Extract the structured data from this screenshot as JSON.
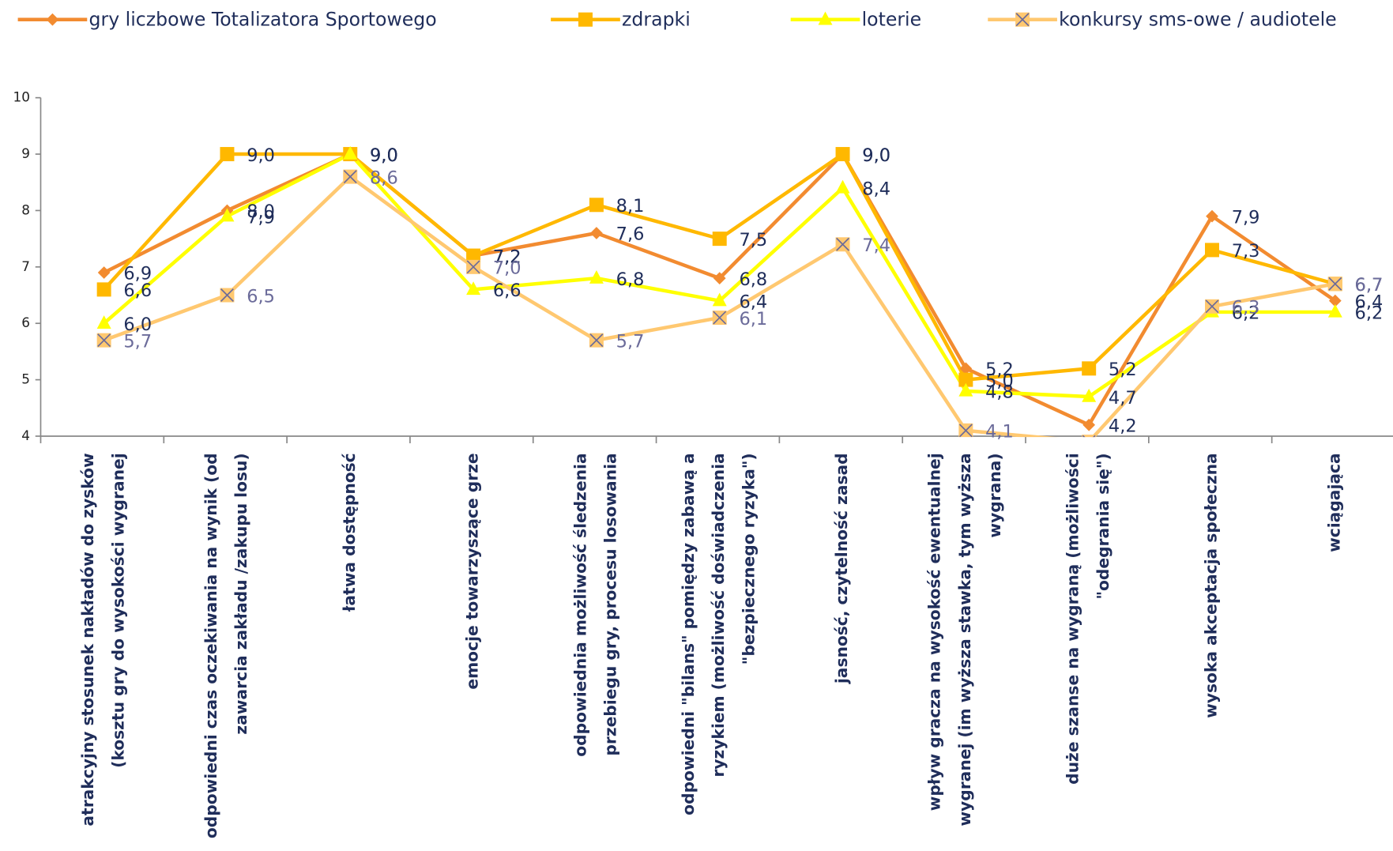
{
  "chart_data": {
    "type": "line",
    "categories": [
      "atrakcyjny stosunek nakładów do zysków (kosztu gry do wysokości wygranej",
      "odpowiedni czas oczekiwania na wynik (od zawarcia zakładu /zakupu losu)",
      "łatwa dostępność",
      "emocje towarzyszące grze",
      "odpowiednia możliwość śledzenia przebiegu gry, procesu losowania",
      "odpowiedni \"bilans\" pomiędzy zabawą a ryzykiem (możliwość doświadczenia \"bezpiecznego ryzyka\")",
      "jasność, czytelność zasad",
      "wpływ gracza na wysokość ewentualnej wygranej (im wyższa stawka, tym wyższa wygrana)",
      "duże szanse na wygraną (możliwości \"odegrania się\")",
      "wysoka akceptacja społeczna",
      "wciągająca"
    ],
    "series": [
      {
        "name": "gry liczbowe Totalizatora Sportowego",
        "color": "#f28b30",
        "marker": "diamond",
        "label_color": "#1f2d5a",
        "values": [
          6.9,
          8.0,
          9.0,
          7.2,
          7.6,
          6.8,
          9.0,
          5.2,
          4.2,
          7.9,
          6.4
        ],
        "value_labels": [
          "6,9",
          "8,0",
          "9,0",
          "7,2",
          "7,6",
          "6,8",
          "9,0",
          "5,2",
          "4,2",
          "7,9",
          "6,4"
        ]
      },
      {
        "name": "zdrapki",
        "color": "#ffb800",
        "marker": "square",
        "label_color": "#1f2d5a",
        "values": [
          6.6,
          9.0,
          9.0,
          7.2,
          8.1,
          7.5,
          9.0,
          5.0,
          5.2,
          7.3,
          6.7
        ],
        "value_labels": [
          "6,6",
          "9,0",
          "9,0",
          "7,2",
          "8,1",
          "7,5",
          "9,0",
          "5,0",
          "5,2",
          "7,3",
          "6,7"
        ]
      },
      {
        "name": "loterie",
        "color": "#ffff00",
        "marker": "triangle",
        "label_color": "#1f2d5a",
        "values": [
          6.0,
          7.9,
          9.0,
          6.6,
          6.8,
          6.4,
          8.4,
          4.8,
          4.7,
          6.2,
          6.2
        ],
        "value_labels": [
          "6,0",
          "7,9",
          "9,0",
          "6,6",
          "6,8",
          "6,4",
          "8,4",
          "4,8",
          "4,7",
          "6,2",
          "6,2"
        ]
      },
      {
        "name": "konkursy sms-owe / audiotele",
        "color": "#ffc870",
        "marker": "x",
        "label_color": "#6b6b9a",
        "values": [
          5.7,
          6.5,
          8.6,
          7.0,
          5.7,
          6.1,
          7.4,
          4.1,
          3.9,
          6.3,
          6.7
        ],
        "value_labels": [
          "5,7",
          "6,5",
          "8,6",
          "7,0",
          "5,7",
          "6,1",
          "7,4",
          "4,1",
          null,
          "6,3",
          "6,7"
        ]
      }
    ],
    "ylim": [
      4,
      10
    ],
    "yticks": [
      4,
      5,
      6,
      7,
      8,
      9,
      10
    ],
    "legend": "top"
  }
}
